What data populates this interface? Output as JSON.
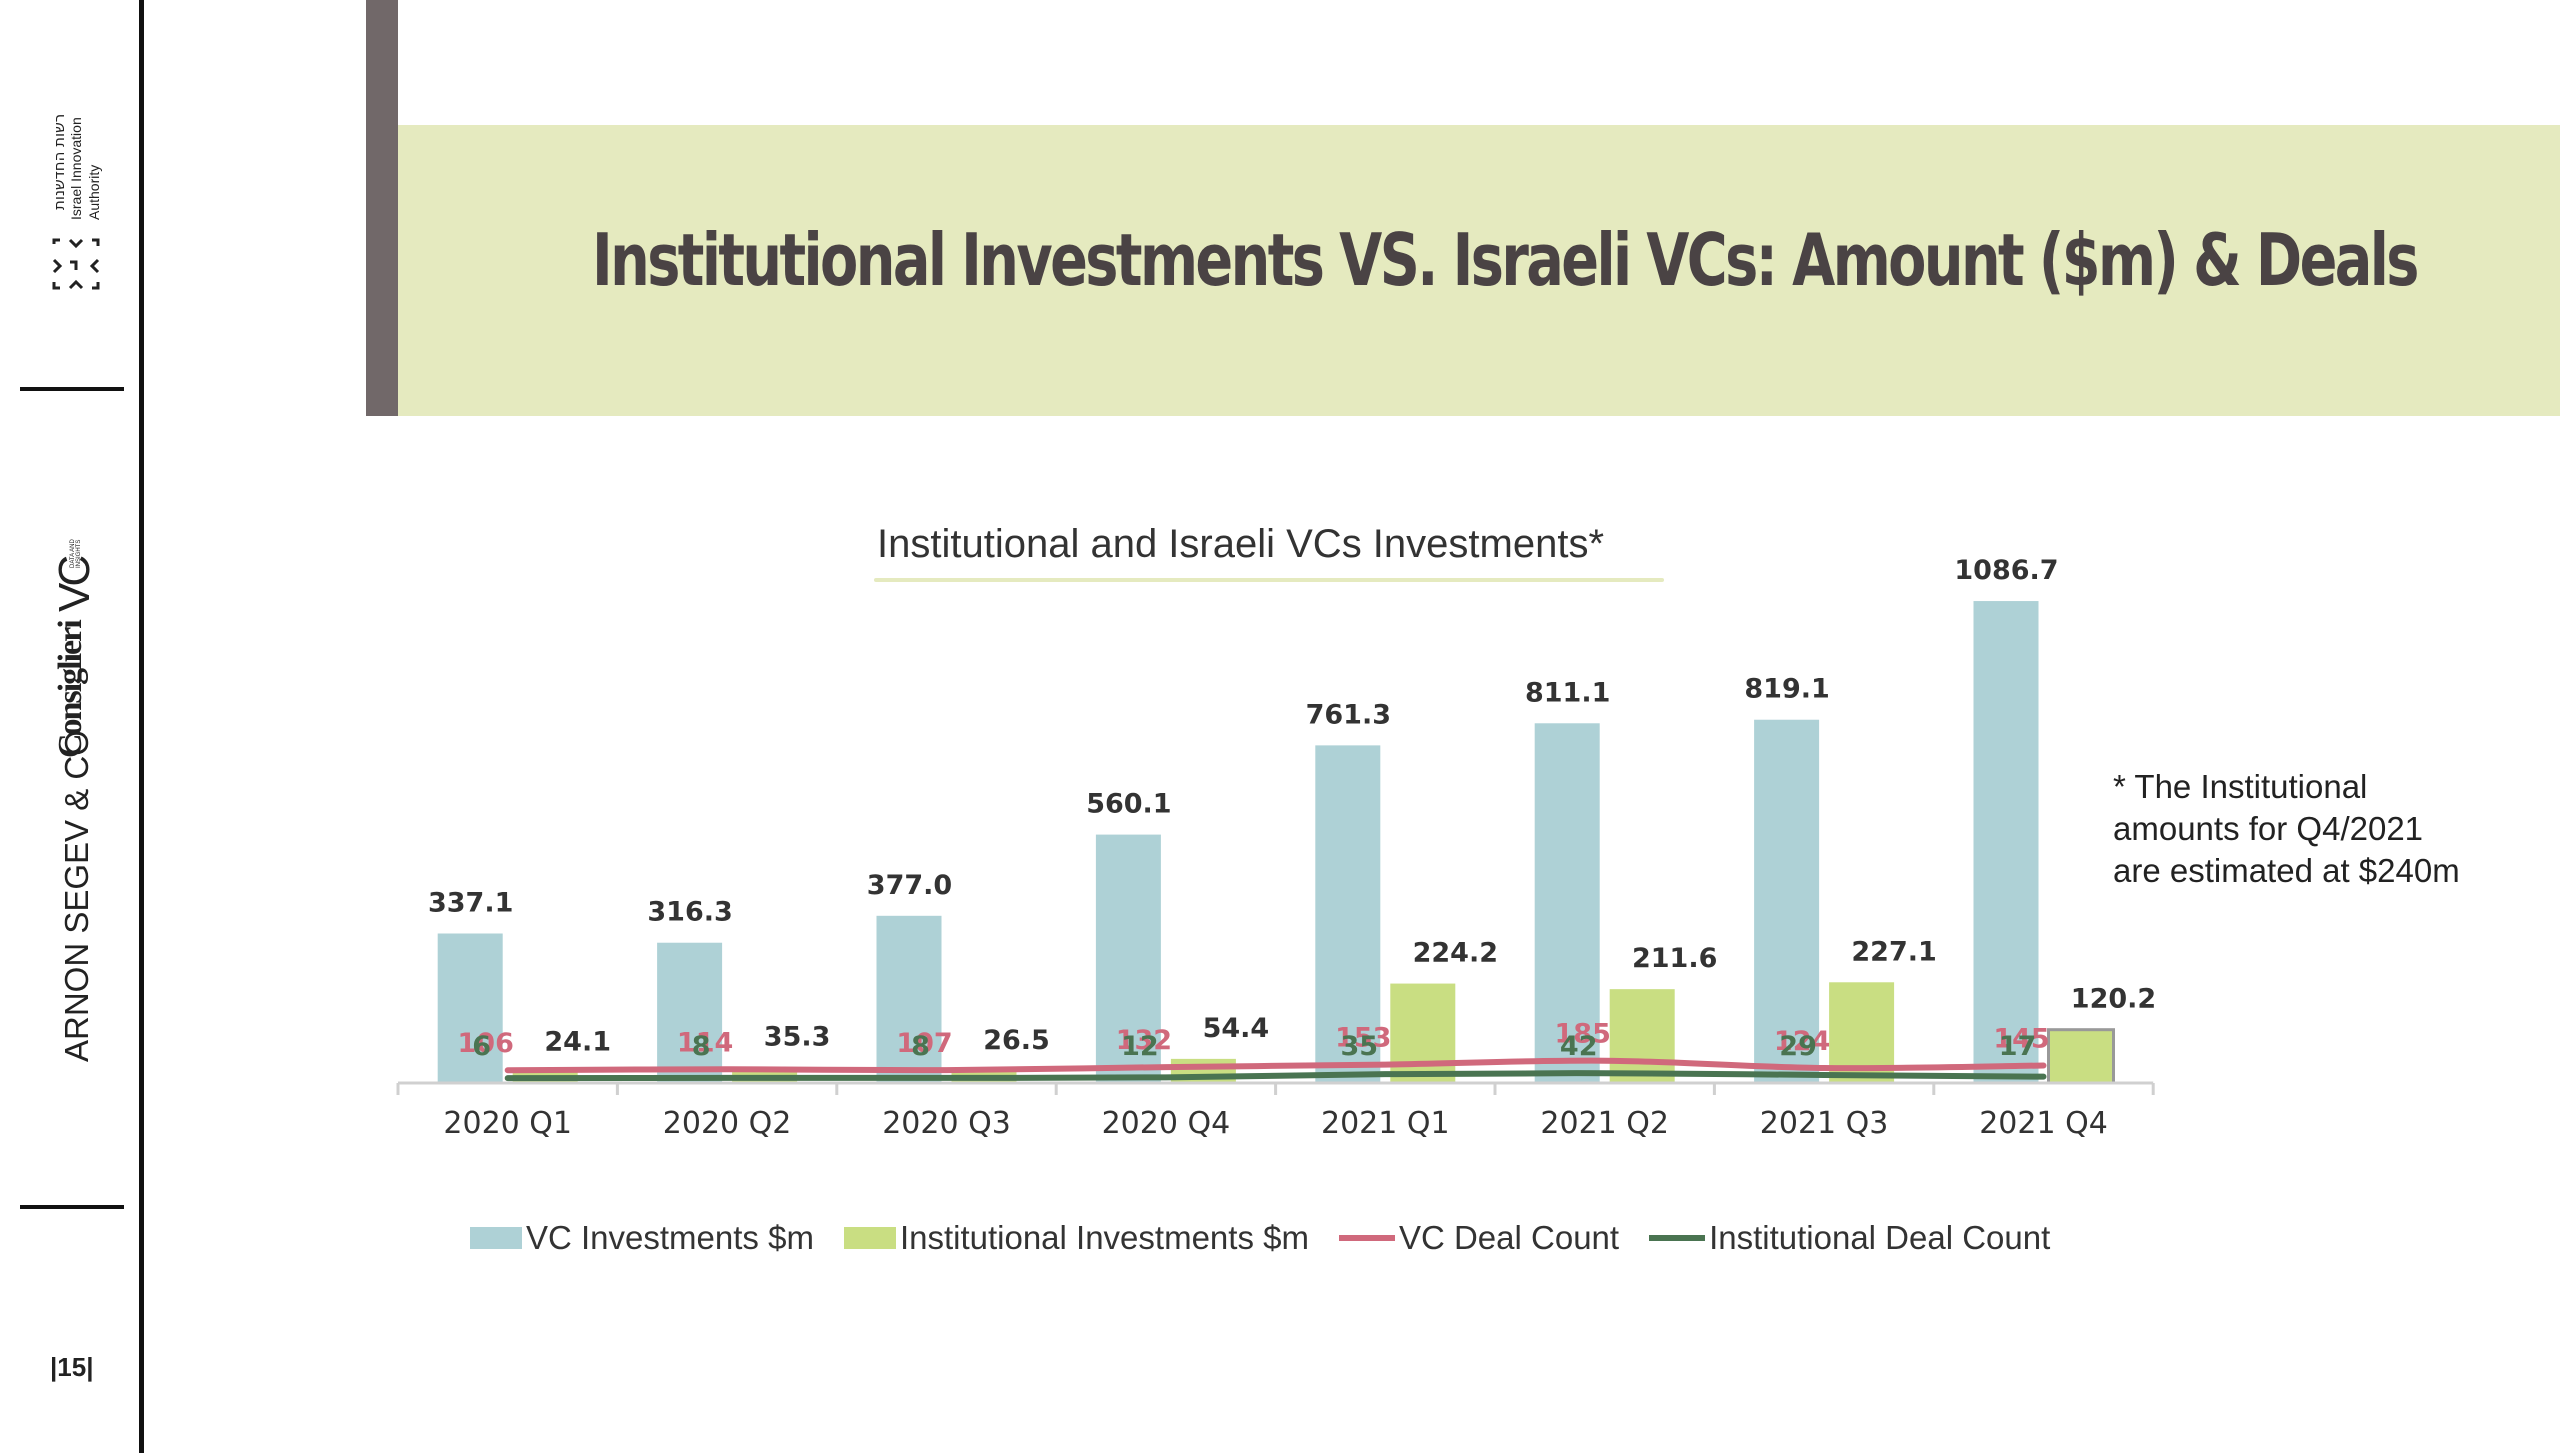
{
  "page": {
    "title": "Institutional Investments VS. Israeli VCs: Amount ($m) & Deals",
    "page_number": "|15|",
    "note": "* The Institutional amounts for Q4/2021 are estimated at $240m"
  },
  "sidebar": {
    "logo_iia_hebrew": "רשות החדשנות",
    "logo_iia_line1": "Israel Innovation",
    "logo_iia_line2": "Authority",
    "logo_vc": "VC",
    "logo_vc_small": "DATA AND INSIGHTS",
    "logo_consiglieri": "Consiglieri",
    "logo_arnon": "ARNON SEGEV & CO"
  },
  "colors": {
    "vc_investments": "#aed1d6",
    "institutional_investments": "#c9de82",
    "vc_deal_count": "#d0697c",
    "institutional_deal_count": "#4a7451",
    "title_band": "#e5eabf",
    "title_accent": "#716869"
  },
  "chart_data": {
    "type": "bar",
    "title": "Institutional and Israeli VCs Investments*",
    "categories": [
      "2020 Q1",
      "2020 Q2",
      "2020 Q3",
      "2020 Q4",
      "2021 Q1",
      "2021 Q2",
      "2021 Q3",
      "2021 Q4"
    ],
    "series": [
      {
        "name": "VC Investments $m",
        "kind": "bar",
        "values": [
          337.1,
          316.3,
          377.0,
          560.1,
          761.3,
          811.1,
          819.1,
          1086.7
        ],
        "labels": [
          "337.1",
          "316.3",
          "377.0",
          "560.1",
          "761.3",
          "811.1",
          "819.1",
          "1086.7"
        ]
      },
      {
        "name": "Institutional Investments $m",
        "kind": "bar",
        "values": [
          24.1,
          35.3,
          26.5,
          54.4,
          224.2,
          211.6,
          227.1,
          120.2
        ],
        "labels": [
          "24.1",
          "35.3",
          "26.5",
          "54.4",
          "224.2",
          "211.6",
          "227.1",
          "120.2"
        ]
      },
      {
        "name": "VC Deal Count",
        "kind": "line",
        "values": [
          106,
          114,
          107,
          132,
          153,
          185,
          124,
          145
        ],
        "labels": [
          "106",
          "114",
          "107",
          "132",
          "153",
          "185",
          "124",
          "145"
        ]
      },
      {
        "name": "Institutional Deal Count",
        "kind": "line",
        "values": [
          6,
          8,
          8,
          12,
          35,
          42,
          29,
          17
        ],
        "labels": [
          "6",
          "8",
          "8",
          "12",
          "35",
          "42",
          "29",
          "17"
        ]
      }
    ],
    "ylim": [
      0,
      1100
    ],
    "legend_position": "bottom",
    "grid": false
  }
}
